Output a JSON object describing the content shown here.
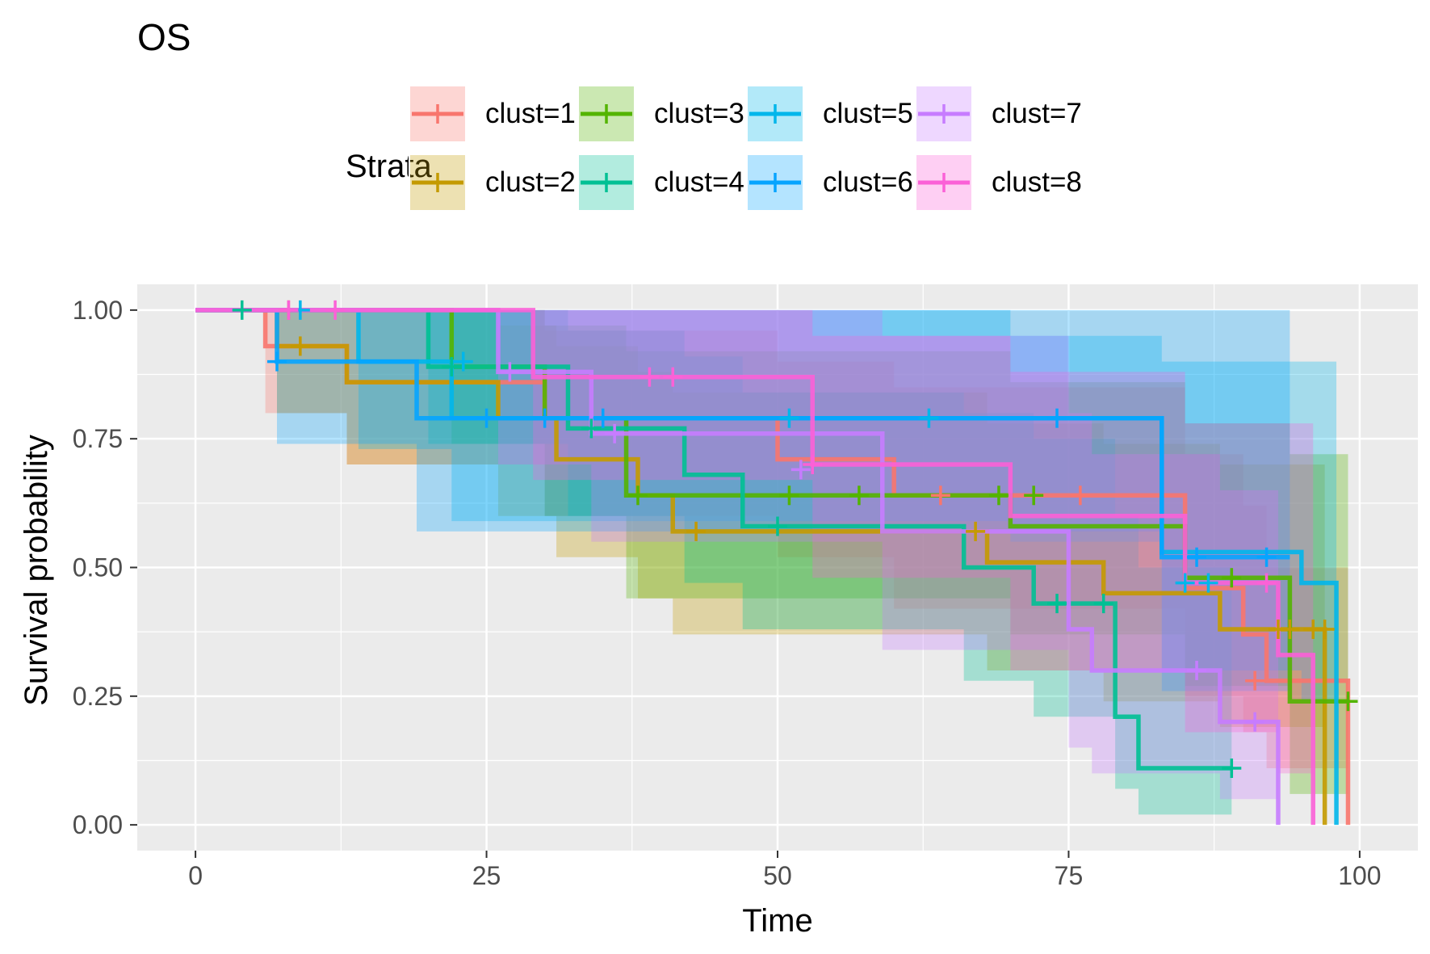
{
  "chart_data": {
    "type": "line",
    "subtype": "kaplan-meier survival curves with confidence bands and censor marks",
    "title": "OS",
    "xlabel": "Time",
    "ylabel": "Survival probability",
    "xlim": [
      -5,
      105
    ],
    "ylim": [
      -0.05,
      1.05
    ],
    "x_ticks": [
      0,
      25,
      50,
      75,
      100
    ],
    "x_tick_labels": [
      "0",
      "25",
      "50",
      "75",
      "100"
    ],
    "y_ticks": [
      0,
      0.25,
      0.5,
      0.75,
      1.0
    ],
    "y_tick_labels": [
      "0.00",
      "0.25",
      "0.50",
      "0.75",
      "1.00"
    ],
    "grid": true,
    "panel_background": "#EBEBEB",
    "legend": {
      "title": "Strata",
      "position": "top"
    },
    "series": [
      {
        "name": "clust=1",
        "color": "#F8766D",
        "steps": [
          [
            0,
            1.0
          ],
          [
            6,
            0.93
          ],
          [
            13,
            0.86
          ],
          [
            30,
            0.79
          ],
          [
            50,
            0.71
          ],
          [
            60,
            0.64
          ],
          [
            85,
            0.46
          ],
          [
            90,
            0.37
          ],
          [
            92,
            0.28
          ],
          [
            99,
            0.0
          ]
        ],
        "lower": [
          [
            0,
            1.0
          ],
          [
            6,
            0.8
          ],
          [
            13,
            0.7
          ],
          [
            30,
            0.6
          ],
          [
            50,
            0.52
          ],
          [
            60,
            0.42
          ],
          [
            85,
            0.25
          ],
          [
            90,
            0.18
          ],
          [
            92,
            0.11
          ],
          [
            99,
            0.0
          ]
        ],
        "upper": [
          [
            0,
            1.0
          ],
          [
            6,
            1.0
          ],
          [
            30,
            0.96
          ],
          [
            50,
            0.9
          ],
          [
            60,
            0.85
          ],
          [
            85,
            0.72
          ],
          [
            90,
            0.62
          ],
          [
            92,
            0.5
          ],
          [
            99,
            0.5
          ]
        ],
        "censored": [
          [
            76,
            0.64
          ],
          [
            64,
            0.64
          ],
          [
            91,
            0.28
          ],
          [
            8,
            1.0
          ]
        ]
      },
      {
        "name": "clust=2",
        "color": "#C49A00",
        "steps": [
          [
            0,
            1.0
          ],
          [
            7,
            0.93
          ],
          [
            13,
            0.86
          ],
          [
            26,
            0.79
          ],
          [
            31,
            0.71
          ],
          [
            38,
            0.64
          ],
          [
            41,
            0.57
          ],
          [
            68,
            0.51
          ],
          [
            78,
            0.45
          ],
          [
            88,
            0.38
          ],
          [
            97,
            0.0
          ]
        ],
        "lower": [
          [
            0,
            1.0
          ],
          [
            7,
            0.8
          ],
          [
            13,
            0.7
          ],
          [
            26,
            0.6
          ],
          [
            31,
            0.52
          ],
          [
            38,
            0.44
          ],
          [
            41,
            0.37
          ],
          [
            68,
            0.3
          ],
          [
            78,
            0.24
          ],
          [
            88,
            0.19
          ],
          [
            97,
            0.0
          ]
        ],
        "upper": [
          [
            0,
            1.0
          ],
          [
            26,
            0.97
          ],
          [
            31,
            0.93
          ],
          [
            38,
            0.88
          ],
          [
            41,
            0.84
          ],
          [
            68,
            0.78
          ],
          [
            78,
            0.74
          ],
          [
            88,
            0.7
          ],
          [
            97,
            0.7
          ]
        ],
        "censored": [
          [
            9,
            0.93
          ],
          [
            43,
            0.57
          ],
          [
            67,
            0.57
          ],
          [
            93,
            0.38
          ],
          [
            94,
            0.38
          ],
          [
            96,
            0.38
          ],
          [
            97,
            0.38
          ]
        ]
      },
      {
        "name": "clust=3",
        "color": "#53B400",
        "steps": [
          [
            0,
            1.0
          ],
          [
            22,
            0.89
          ],
          [
            30,
            0.79
          ],
          [
            37,
            0.64
          ],
          [
            70,
            0.58
          ],
          [
            85,
            0.48
          ],
          [
            94,
            0.24
          ],
          [
            99,
            0.24
          ]
        ],
        "lower": [
          [
            0,
            1.0
          ],
          [
            22,
            0.74
          ],
          [
            30,
            0.6
          ],
          [
            37,
            0.44
          ],
          [
            70,
            0.37
          ],
          [
            85,
            0.27
          ],
          [
            94,
            0.06
          ],
          [
            99,
            0.06
          ]
        ],
        "upper": [
          [
            0,
            1.0
          ],
          [
            30,
            0.97
          ],
          [
            37,
            0.92
          ],
          [
            70,
            0.86
          ],
          [
            85,
            0.78
          ],
          [
            94,
            0.72
          ],
          [
            99,
            0.72
          ]
        ],
        "censored": [
          [
            38,
            0.64
          ],
          [
            51,
            0.64
          ],
          [
            57,
            0.64
          ],
          [
            69,
            0.64
          ],
          [
            72,
            0.64
          ],
          [
            89,
            0.48
          ],
          [
            99,
            0.24
          ]
        ]
      },
      {
        "name": "clust=4",
        "color": "#00C094",
        "steps": [
          [
            0,
            1.0
          ],
          [
            20,
            0.89
          ],
          [
            32,
            0.77
          ],
          [
            42,
            0.68
          ],
          [
            47,
            0.58
          ],
          [
            66,
            0.5
          ],
          [
            72,
            0.43
          ],
          [
            79,
            0.21
          ],
          [
            81,
            0.11
          ],
          [
            89,
            0.11
          ]
        ],
        "lower": [
          [
            0,
            1.0
          ],
          [
            20,
            0.74
          ],
          [
            32,
            0.6
          ],
          [
            42,
            0.47
          ],
          [
            47,
            0.38
          ],
          [
            66,
            0.28
          ],
          [
            72,
            0.21
          ],
          [
            79,
            0.07
          ],
          [
            81,
            0.02
          ],
          [
            89,
            0.02
          ]
        ],
        "upper": [
          [
            0,
            1.0
          ],
          [
            32,
            0.96
          ],
          [
            42,
            0.91
          ],
          [
            47,
            0.84
          ],
          [
            66,
            0.8
          ],
          [
            72,
            0.75
          ],
          [
            79,
            0.6
          ],
          [
            81,
            0.5
          ],
          [
            89,
            0.5
          ]
        ],
        "censored": [
          [
            4,
            1.0
          ],
          [
            22,
            0.89
          ],
          [
            34,
            0.77
          ],
          [
            50,
            0.58
          ],
          [
            74,
            0.43
          ],
          [
            78,
            0.43
          ],
          [
            89,
            0.11
          ]
        ]
      },
      {
        "name": "clust=5",
        "color": "#00B6EB",
        "steps": [
          [
            0,
            1.0
          ],
          [
            14,
            0.9
          ],
          [
            22,
            0.79
          ],
          [
            35,
            0.79
          ],
          [
            70,
            0.79
          ],
          [
            83,
            0.53
          ],
          [
            95,
            0.47
          ],
          [
            98,
            0.0
          ]
        ],
        "lower": [
          [
            0,
            1.0
          ],
          [
            14,
            0.73
          ],
          [
            22,
            0.59
          ],
          [
            70,
            0.55
          ],
          [
            83,
            0.3
          ],
          [
            95,
            0.24
          ],
          [
            98,
            0.0
          ]
        ],
        "upper": [
          [
            0,
            1.0
          ],
          [
            35,
            1.0
          ],
          [
            70,
            0.95
          ],
          [
            83,
            0.9
          ],
          [
            98,
            0.9
          ]
        ],
        "censored": [
          [
            9,
            1.0
          ],
          [
            23,
            0.9
          ],
          [
            51,
            0.79
          ],
          [
            63,
            0.79
          ],
          [
            85,
            0.47
          ],
          [
            87,
            0.47
          ]
        ]
      },
      {
        "name": "clust=6",
        "color": "#06A4FF",
        "steps": [
          [
            0,
            1.0
          ],
          [
            7,
            0.9
          ],
          [
            19,
            0.79
          ],
          [
            36,
            0.79
          ],
          [
            70,
            0.79
          ],
          [
            83,
            0.52
          ],
          [
            94,
            0.52
          ]
        ],
        "lower": [
          [
            0,
            1.0
          ],
          [
            7,
            0.74
          ],
          [
            19,
            0.57
          ],
          [
            36,
            0.57
          ],
          [
            70,
            0.57
          ],
          [
            83,
            0.26
          ],
          [
            94,
            0.26
          ]
        ],
        "upper": [
          [
            0,
            1.0
          ],
          [
            94,
            1.0
          ]
        ],
        "censored": [
          [
            7,
            0.9
          ],
          [
            25,
            0.79
          ],
          [
            30,
            0.79
          ],
          [
            35,
            0.79
          ],
          [
            74,
            0.79
          ],
          [
            86,
            0.52
          ],
          [
            92,
            0.52
          ]
        ]
      },
      {
        "name": "clust=7",
        "color": "#C77CFF",
        "steps": [
          [
            0,
            1.0
          ],
          [
            26,
            0.88
          ],
          [
            34,
            0.76
          ],
          [
            59,
            0.57
          ],
          [
            75,
            0.38
          ],
          [
            77,
            0.3
          ],
          [
            88,
            0.2
          ],
          [
            93,
            0.0
          ]
        ],
        "lower": [
          [
            0,
            1.0
          ],
          [
            26,
            0.7
          ],
          [
            34,
            0.55
          ],
          [
            59,
            0.34
          ],
          [
            75,
            0.15
          ],
          [
            77,
            0.1
          ],
          [
            88,
            0.05
          ],
          [
            93,
            0.0
          ]
        ],
        "upper": [
          [
            0,
            1.0
          ],
          [
            59,
            0.95
          ],
          [
            75,
            0.8
          ],
          [
            77,
            0.72
          ],
          [
            88,
            0.65
          ],
          [
            93,
            0.65
          ]
        ],
        "censored": [
          [
            27,
            0.88
          ],
          [
            36,
            0.76
          ],
          [
            52,
            0.69
          ],
          [
            86,
            0.3
          ],
          [
            91,
            0.2
          ]
        ]
      },
      {
        "name": "clust=8",
        "color": "#FB61D7",
        "steps": [
          [
            0,
            1.0
          ],
          [
            29,
            0.87
          ],
          [
            53,
            0.7
          ],
          [
            70,
            0.6
          ],
          [
            85,
            0.47
          ],
          [
            93,
            0.33
          ],
          [
            96,
            0.0
          ]
        ],
        "lower": [
          [
            0,
            1.0
          ],
          [
            29,
            0.67
          ],
          [
            53,
            0.48
          ],
          [
            70,
            0.3
          ],
          [
            85,
            0.18
          ],
          [
            93,
            0.1
          ],
          [
            96,
            0.0
          ]
        ],
        "upper": [
          [
            0,
            1.0
          ],
          [
            53,
            0.95
          ],
          [
            70,
            0.88
          ],
          [
            85,
            0.78
          ],
          [
            96,
            0.78
          ]
        ],
        "censored": [
          [
            8,
            1.0
          ],
          [
            12,
            1.0
          ],
          [
            39,
            0.87
          ],
          [
            41,
            0.87
          ],
          [
            53,
            0.7
          ],
          [
            92,
            0.47
          ]
        ]
      }
    ]
  }
}
